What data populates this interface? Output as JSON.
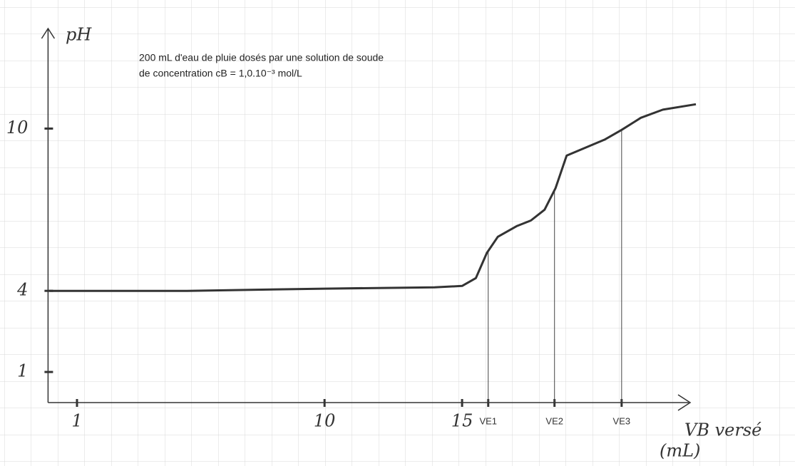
{
  "chart_data": {
    "type": "line",
    "title_lines": [
      "200 mL d'eau de pluie dosés par une solution de soude",
      "de concentration cB = 1,0.10⁻³ mol/L"
    ],
    "ylabel": "pH",
    "xlabel": "VB versé",
    "xunit": "(mL)",
    "x": [
      0,
      5,
      10,
      14,
      15,
      15.5,
      15.9,
      16.3,
      17,
      17.5,
      18,
      18.4,
      18.8,
      19.5,
      20.2,
      20.8,
      21.5,
      22.3,
      23.5
    ],
    "values": [
      4.0,
      4.0,
      4.08,
      4.13,
      4.18,
      4.47,
      5.4,
      6.0,
      6.4,
      6.6,
      7.0,
      7.8,
      9.0,
      9.3,
      9.6,
      9.95,
      10.4,
      10.7,
      10.9
    ],
    "color": "#333333",
    "xlim": [
      0,
      23.5
    ],
    "ylim": [
      0,
      13.7
    ],
    "xticks": [
      1,
      10,
      15,
      {
        "value": 15.95,
        "label": "VE1"
      },
      {
        "value": 18.36,
        "label": "VE2"
      },
      {
        "value": 20.8,
        "label": "VE3"
      }
    ],
    "yticks": [
      1,
      4,
      10
    ],
    "equivalence_ticks": [
      3,
      4,
      5
    ],
    "grid": true
  }
}
